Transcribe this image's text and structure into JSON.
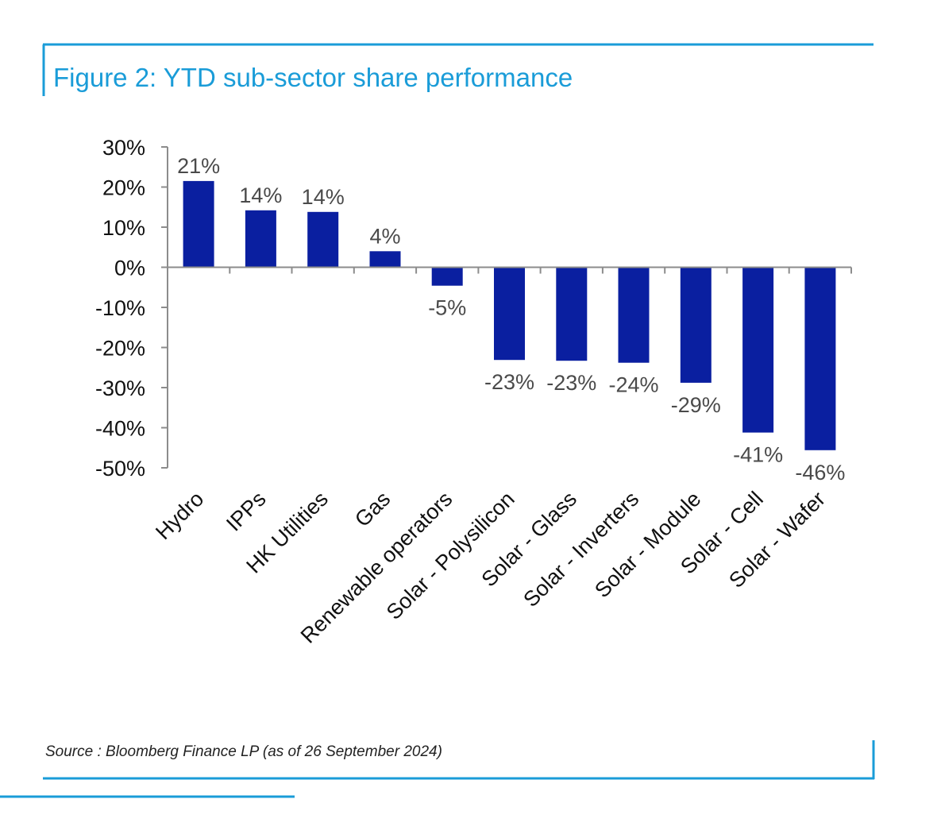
{
  "figure": {
    "title": "Figure 2: YTD sub-sector share performance",
    "source": "Source : Bloomberg Finance LP (as of 26 September 2024)",
    "frame_color": "#1a9cd8"
  },
  "chart_data": {
    "type": "bar",
    "title": "",
    "xlabel": "",
    "ylabel": "",
    "categories": [
      "Hydro",
      "IPPs",
      "HK Utilities",
      "Gas",
      "Renewable operators",
      "Solar - Polysilicon",
      "Solar - Glass",
      "Solar - Inverters",
      "Solar - Module",
      "Solar - Cell",
      "Solar - Wafer"
    ],
    "values": [
      21.5,
      14.2,
      13.8,
      4.0,
      -4.6,
      -23.1,
      -23.3,
      -23.8,
      -28.8,
      -41.2,
      -45.6
    ],
    "data_labels": [
      "21%",
      "14%",
      "14%",
      "4%",
      "-5%",
      "-23%",
      "-23%",
      "-24%",
      "-29%",
      "-41%",
      "-46%"
    ],
    "ylim": [
      -50,
      30
    ],
    "yticks": [
      30,
      20,
      10,
      0,
      -10,
      -20,
      -30,
      -40,
      -50
    ],
    "ytick_labels": [
      "30%",
      "20%",
      "10%",
      "0%",
      "-10%",
      "-20%",
      "-30%",
      "-40%",
      "-50%"
    ],
    "bar_color": "#0a1fa0",
    "grid": false,
    "legend": "none"
  }
}
